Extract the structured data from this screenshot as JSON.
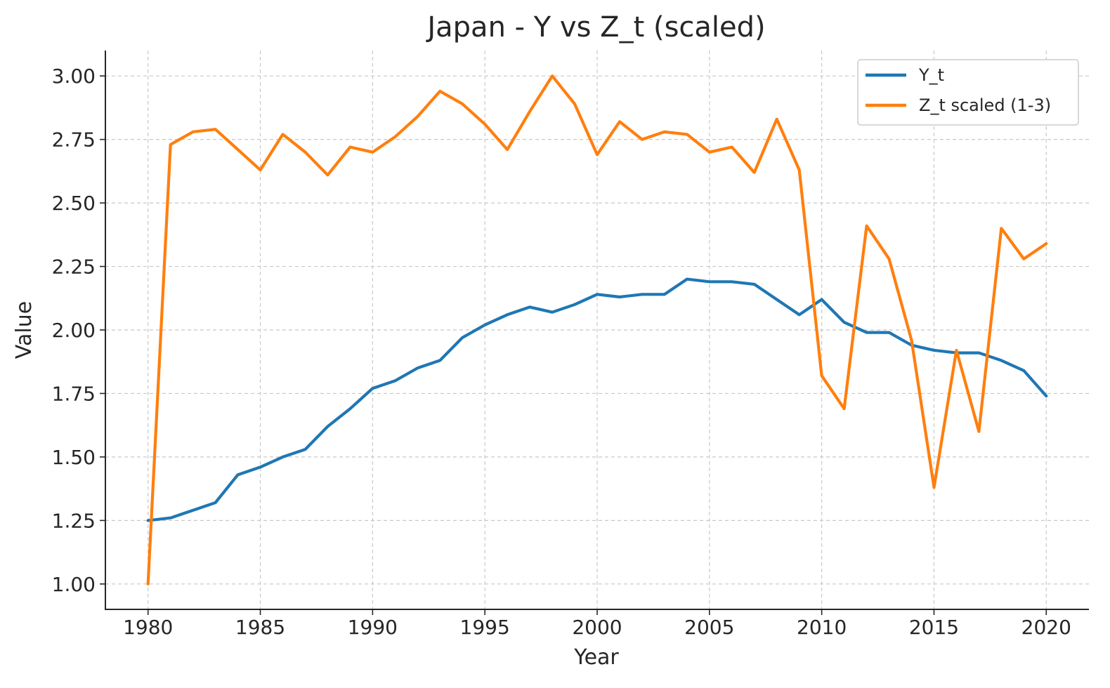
{
  "chart_data": {
    "type": "line",
    "title": "Japan - Y vs Z_t (scaled)",
    "xlabel": "Year",
    "ylabel": "Value",
    "xlim": [
      1978.1,
      2021.9
    ],
    "ylim": [
      0.9,
      3.1
    ],
    "xticks": [
      1980,
      1985,
      1990,
      1995,
      2000,
      2005,
      2010,
      2015,
      2020
    ],
    "yticks": [
      "1.00",
      "1.25",
      "1.50",
      "1.75",
      "2.00",
      "2.25",
      "2.50",
      "2.75",
      "3.00"
    ],
    "grid": true,
    "legend_position": "top-right",
    "x": [
      1980,
      1981,
      1982,
      1983,
      1984,
      1985,
      1986,
      1987,
      1988,
      1989,
      1990,
      1991,
      1992,
      1993,
      1994,
      1995,
      1996,
      1997,
      1998,
      1999,
      2000,
      2001,
      2002,
      2003,
      2004,
      2005,
      2006,
      2007,
      2008,
      2009,
      2010,
      2011,
      2012,
      2013,
      2014,
      2015,
      2016,
      2017,
      2018,
      2019,
      2020
    ],
    "series": [
      {
        "name": "Y_t",
        "color": "#1f77b4",
        "values": [
          1.25,
          1.26,
          1.29,
          1.32,
          1.43,
          1.46,
          1.5,
          1.53,
          1.62,
          1.69,
          1.77,
          1.8,
          1.85,
          1.88,
          1.97,
          2.02,
          2.06,
          2.09,
          2.07,
          2.1,
          2.14,
          2.13,
          2.14,
          2.14,
          2.2,
          2.19,
          2.19,
          2.18,
          2.12,
          2.06,
          2.12,
          2.03,
          1.99,
          1.99,
          1.94,
          1.92,
          1.91,
          1.91,
          1.88,
          1.84,
          1.74
        ]
      },
      {
        "name": "Z_t scaled (1-3)",
        "color": "#ff7f0e",
        "values": [
          1.0,
          2.73,
          2.78,
          2.79,
          2.71,
          2.63,
          2.77,
          2.7,
          2.61,
          2.72,
          2.7,
          2.76,
          2.84,
          2.94,
          2.89,
          2.81,
          2.71,
          2.86,
          3.0,
          2.89,
          2.69,
          2.82,
          2.75,
          2.78,
          2.77,
          2.7,
          2.72,
          2.62,
          2.83,
          2.63,
          1.82,
          1.69,
          2.41,
          2.28,
          1.96,
          1.38,
          1.92,
          1.6,
          2.4,
          2.28,
          2.34
        ]
      }
    ]
  }
}
